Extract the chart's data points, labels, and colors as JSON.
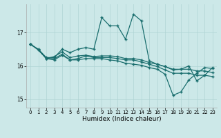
{
  "xlabel": "Humidex (Indice chaleur)",
  "bg_color": "#cce8e8",
  "line_color": "#1a6e6e",
  "xlim": [
    -0.5,
    23.5
  ],
  "ylim": [
    14.75,
    17.85
  ],
  "yticks": [
    15,
    16,
    17
  ],
  "xticks": [
    0,
    1,
    2,
    3,
    4,
    5,
    6,
    7,
    8,
    9,
    10,
    11,
    12,
    13,
    14,
    15,
    16,
    17,
    18,
    19,
    20,
    21,
    22,
    23
  ],
  "line1_x": [
    0,
    1,
    2,
    3,
    4,
    5,
    6,
    7,
    8,
    9,
    10,
    11,
    12,
    13,
    14,
    15,
    16,
    17,
    18,
    19,
    20,
    21,
    22,
    23
  ],
  "line1_y": [
    16.65,
    16.5,
    16.25,
    16.25,
    16.5,
    16.4,
    16.5,
    16.55,
    16.5,
    17.45,
    17.2,
    17.2,
    16.8,
    17.55,
    17.35,
    16.15,
    16.05,
    15.98,
    15.88,
    15.9,
    16.0,
    15.55,
    15.72,
    15.95
  ],
  "line2_x": [
    0,
    1,
    2,
    3,
    4,
    5,
    6,
    7,
    8,
    9,
    10,
    11,
    12,
    13,
    14,
    15,
    16,
    17,
    18,
    19,
    20,
    21,
    22,
    23
  ],
  "line2_y": [
    16.65,
    16.48,
    16.22,
    16.28,
    16.42,
    16.25,
    16.3,
    16.32,
    16.28,
    16.3,
    16.3,
    16.28,
    16.22,
    16.22,
    16.18,
    16.1,
    16.05,
    15.98,
    15.9,
    15.9,
    15.9,
    15.85,
    15.85,
    15.8
  ],
  "line3_x": [
    0,
    1,
    2,
    3,
    4,
    5,
    6,
    7,
    8,
    9,
    10,
    11,
    12,
    13,
    14,
    15,
    16,
    17,
    18,
    19,
    20,
    21,
    22,
    23
  ],
  "line3_y": [
    16.65,
    16.48,
    16.22,
    16.18,
    16.32,
    16.18,
    16.22,
    16.3,
    16.25,
    16.25,
    16.25,
    16.22,
    16.18,
    16.18,
    16.12,
    16.05,
    15.98,
    15.88,
    15.78,
    15.78,
    15.78,
    15.72,
    15.72,
    15.68
  ],
  "line4_x": [
    0,
    1,
    2,
    3,
    4,
    5,
    6,
    7,
    8,
    9,
    10,
    11,
    12,
    13,
    14,
    15,
    16,
    17,
    18,
    19,
    20,
    21,
    22,
    23
  ],
  "line4_y": [
    16.65,
    16.48,
    16.22,
    16.22,
    16.35,
    16.18,
    16.18,
    16.22,
    16.22,
    16.22,
    16.18,
    16.15,
    16.08,
    16.05,
    16.02,
    15.95,
    15.9,
    15.75,
    15.12,
    15.22,
    15.58,
    15.78,
    15.95,
    15.92
  ]
}
